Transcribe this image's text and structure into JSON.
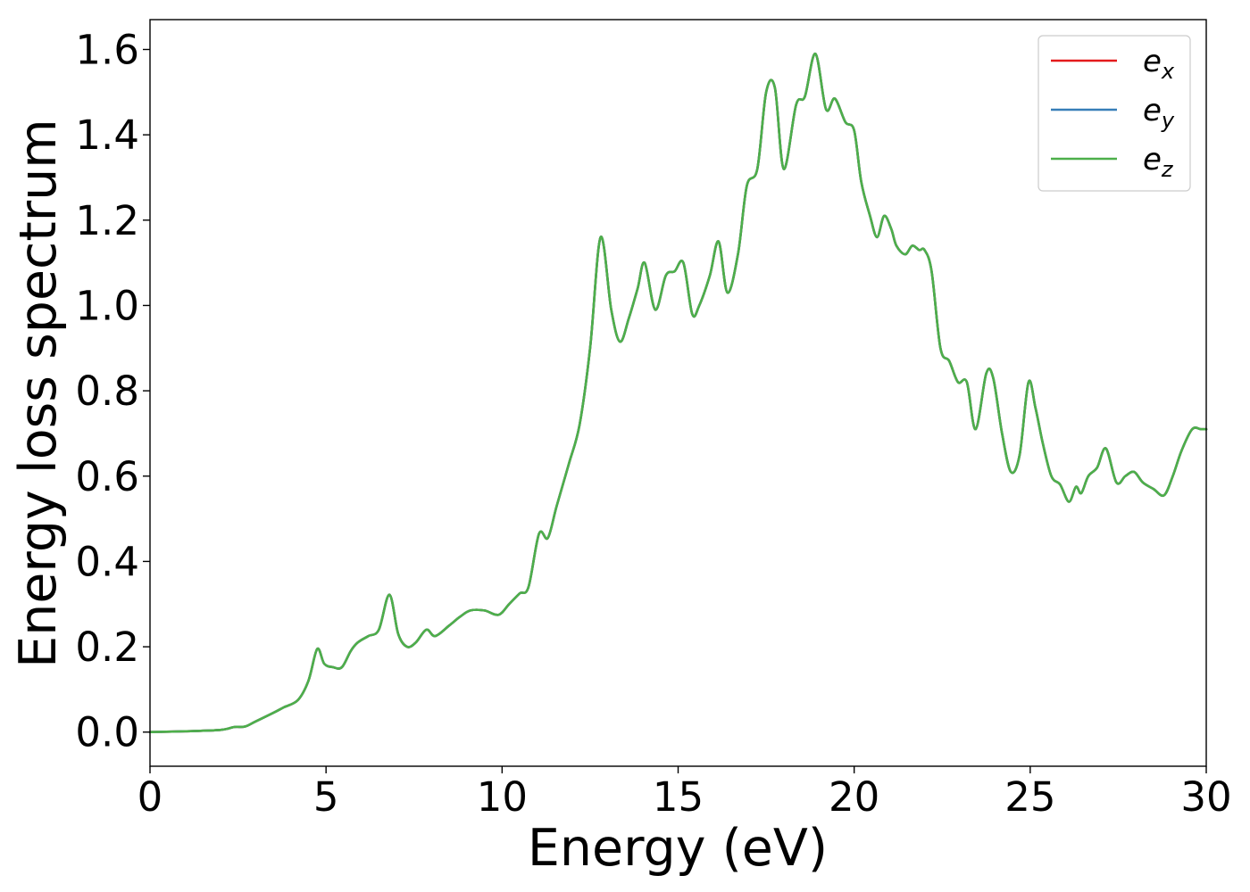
{
  "chart_data": {
    "type": "line",
    "xlabel": "Energy (eV)",
    "ylabel": "Energy loss spectrum",
    "xlim": [
      0,
      30
    ],
    "ylim": [
      -0.08,
      1.67
    ],
    "xticks": [
      0,
      5,
      10,
      15,
      20,
      25,
      30
    ],
    "xtick_labels": [
      "0",
      "5",
      "10",
      "15",
      "20",
      "25",
      "30"
    ],
    "yticks": [
      0.0,
      0.2,
      0.4,
      0.6,
      0.8,
      1.0,
      1.2,
      1.4,
      1.6
    ],
    "ytick_labels": [
      "0.0",
      "0.2",
      "0.4",
      "0.6",
      "0.8",
      "1.0",
      "1.2",
      "1.4",
      "1.6"
    ],
    "grid": false,
    "legend_position": "top-right",
    "x": [
      0.0,
      1.0,
      2.0,
      2.4,
      2.7,
      3.0,
      3.5,
      3.8,
      4.2,
      4.5,
      4.75,
      4.95,
      5.2,
      5.45,
      5.7,
      5.9,
      6.2,
      6.5,
      6.8,
      7.05,
      7.3,
      7.55,
      7.85,
      8.1,
      8.5,
      8.8,
      9.1,
      9.5,
      9.9,
      10.2,
      10.5,
      10.75,
      11.05,
      11.3,
      11.55,
      11.9,
      12.2,
      12.5,
      12.8,
      13.1,
      13.35,
      13.6,
      13.85,
      14.05,
      14.35,
      14.65,
      14.9,
      15.15,
      15.4,
      15.6,
      15.9,
      16.15,
      16.4,
      16.7,
      16.95,
      17.25,
      17.5,
      17.75,
      18.0,
      18.35,
      18.6,
      18.9,
      19.2,
      19.45,
      19.75,
      20.0,
      20.2,
      20.45,
      20.65,
      20.85,
      21.05,
      21.2,
      21.45,
      21.65,
      21.85,
      22.0,
      22.2,
      22.45,
      22.7,
      22.95,
      23.2,
      23.45,
      23.75,
      23.95,
      24.2,
      24.45,
      24.7,
      24.95,
      25.15,
      25.35,
      25.6,
      25.85,
      26.1,
      26.3,
      26.45,
      26.65,
      26.9,
      27.15,
      27.45,
      27.7,
      27.95,
      28.2,
      28.5,
      28.8,
      29.05,
      29.3,
      29.6,
      29.85,
      30.0
    ],
    "series": [
      {
        "name": "e_x",
        "label_main": "e",
        "label_sub": "x",
        "color": "#e41a1c",
        "values": [
          0.0,
          0.002,
          0.005,
          0.012,
          0.013,
          0.025,
          0.045,
          0.058,
          0.075,
          0.12,
          0.195,
          0.16,
          0.152,
          0.152,
          0.19,
          0.21,
          0.225,
          0.24,
          0.322,
          0.23,
          0.2,
          0.21,
          0.24,
          0.225,
          0.25,
          0.27,
          0.285,
          0.285,
          0.275,
          0.3,
          0.325,
          0.34,
          0.465,
          0.455,
          0.53,
          0.63,
          0.72,
          0.9,
          1.16,
          0.99,
          0.915,
          0.97,
          1.04,
          1.1,
          0.99,
          1.07,
          1.08,
          1.1,
          0.98,
          1.0,
          1.07,
          1.15,
          1.03,
          1.12,
          1.28,
          1.32,
          1.5,
          1.51,
          1.32,
          1.47,
          1.49,
          1.59,
          1.46,
          1.485,
          1.43,
          1.41,
          1.29,
          1.21,
          1.16,
          1.21,
          1.18,
          1.14,
          1.12,
          1.14,
          1.13,
          1.13,
          1.08,
          0.9,
          0.87,
          0.82,
          0.82,
          0.71,
          0.84,
          0.83,
          0.7,
          0.61,
          0.65,
          0.82,
          0.76,
          0.68,
          0.6,
          0.58,
          0.54,
          0.575,
          0.56,
          0.6,
          0.62,
          0.665,
          0.585,
          0.6,
          0.61,
          0.585,
          0.57,
          0.555,
          0.6,
          0.66,
          0.71,
          0.71,
          0.71
        ]
      },
      {
        "name": "e_y",
        "label_main": "e",
        "label_sub": "y",
        "color": "#377eb8",
        "values": [
          0.0,
          0.002,
          0.005,
          0.012,
          0.013,
          0.025,
          0.045,
          0.058,
          0.075,
          0.12,
          0.195,
          0.16,
          0.152,
          0.152,
          0.19,
          0.21,
          0.225,
          0.24,
          0.322,
          0.23,
          0.2,
          0.21,
          0.24,
          0.225,
          0.25,
          0.27,
          0.285,
          0.285,
          0.275,
          0.3,
          0.325,
          0.34,
          0.465,
          0.455,
          0.53,
          0.63,
          0.72,
          0.9,
          1.16,
          0.99,
          0.915,
          0.97,
          1.04,
          1.1,
          0.99,
          1.07,
          1.08,
          1.1,
          0.98,
          1.0,
          1.07,
          1.15,
          1.03,
          1.12,
          1.28,
          1.32,
          1.5,
          1.51,
          1.32,
          1.47,
          1.49,
          1.59,
          1.46,
          1.485,
          1.43,
          1.41,
          1.29,
          1.21,
          1.16,
          1.21,
          1.18,
          1.14,
          1.12,
          1.14,
          1.13,
          1.13,
          1.08,
          0.9,
          0.87,
          0.82,
          0.82,
          0.71,
          0.84,
          0.83,
          0.7,
          0.61,
          0.65,
          0.82,
          0.76,
          0.68,
          0.6,
          0.58,
          0.54,
          0.575,
          0.56,
          0.6,
          0.62,
          0.665,
          0.585,
          0.6,
          0.61,
          0.585,
          0.57,
          0.555,
          0.6,
          0.66,
          0.71,
          0.71,
          0.71
        ]
      },
      {
        "name": "e_z",
        "label_main": "e",
        "label_sub": "z",
        "color": "#4daf4a",
        "values": [
          0.0,
          0.002,
          0.005,
          0.012,
          0.013,
          0.025,
          0.045,
          0.058,
          0.075,
          0.12,
          0.195,
          0.16,
          0.152,
          0.152,
          0.19,
          0.21,
          0.225,
          0.24,
          0.322,
          0.23,
          0.2,
          0.21,
          0.24,
          0.225,
          0.25,
          0.27,
          0.285,
          0.285,
          0.275,
          0.3,
          0.325,
          0.34,
          0.465,
          0.455,
          0.53,
          0.63,
          0.72,
          0.9,
          1.16,
          0.99,
          0.915,
          0.97,
          1.04,
          1.1,
          0.99,
          1.07,
          1.08,
          1.1,
          0.98,
          1.0,
          1.07,
          1.15,
          1.03,
          1.12,
          1.28,
          1.32,
          1.5,
          1.51,
          1.32,
          1.47,
          1.49,
          1.59,
          1.46,
          1.485,
          1.43,
          1.41,
          1.29,
          1.21,
          1.16,
          1.21,
          1.18,
          1.14,
          1.12,
          1.14,
          1.13,
          1.13,
          1.08,
          0.9,
          0.87,
          0.82,
          0.82,
          0.71,
          0.84,
          0.83,
          0.7,
          0.61,
          0.65,
          0.82,
          0.76,
          0.68,
          0.6,
          0.58,
          0.54,
          0.575,
          0.56,
          0.6,
          0.62,
          0.665,
          0.585,
          0.6,
          0.61,
          0.585,
          0.57,
          0.555,
          0.6,
          0.66,
          0.71,
          0.71,
          0.71
        ]
      }
    ]
  }
}
